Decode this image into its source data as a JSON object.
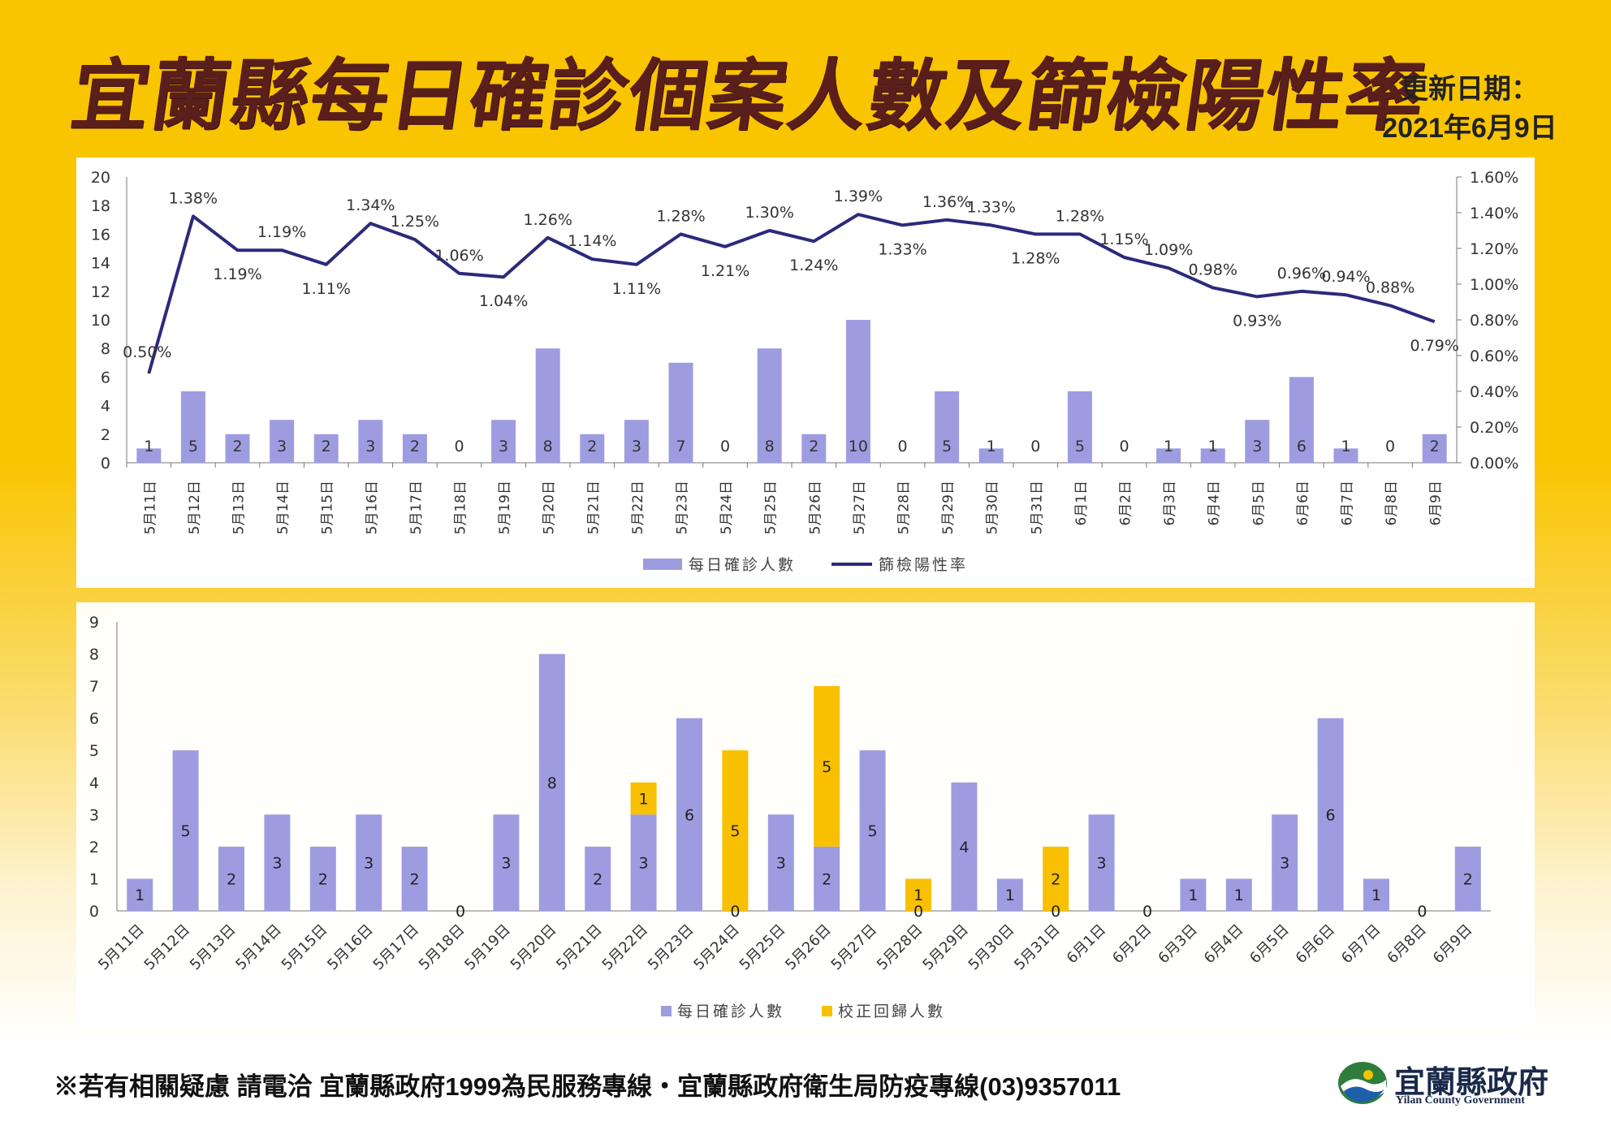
{
  "header": {
    "title": "宜蘭縣每日確診個案人數及篩檢陽性率",
    "update_label": "更新日期：",
    "update_date": "2021年6月9日"
  },
  "footer": {
    "text": "※若有相關疑慮 請電洽  宜蘭縣政府1999為民服務專線・宜蘭縣政府衛生局防疫專線(03)9357011",
    "logo_zh": "宜蘭縣政府",
    "logo_en": "Yilan County Government"
  },
  "colors": {
    "bar": "#9e9ce0",
    "line": "#2b2a7c",
    "correction": "#f8c000",
    "title": "#5a1f1b"
  },
  "chart_data": [
    {
      "type": "bar+line",
      "categories": [
        "5月11日",
        "5月12日",
        "5月13日",
        "5月14日",
        "5月15日",
        "5月16日",
        "5月17日",
        "5月18日",
        "5月19日",
        "5月20日",
        "5月21日",
        "5月22日",
        "5月23日",
        "5月24日",
        "5月25日",
        "5月26日",
        "5月27日",
        "5月28日",
        "5月29日",
        "5月30日",
        "5月31日",
        "6月1日",
        "6月2日",
        "6月3日",
        "6月4日",
        "6月5日",
        "6月6日",
        "6月7日",
        "6月8日",
        "6月9日"
      ],
      "series": [
        {
          "name": "每日確診人數",
          "type": "bar",
          "axis": "left",
          "values": [
            1,
            5,
            2,
            3,
            2,
            3,
            2,
            0,
            3,
            8,
            2,
            3,
            7,
            0,
            8,
            2,
            10,
            0,
            5,
            1,
            0,
            5,
            0,
            1,
            1,
            3,
            6,
            1,
            0,
            2
          ]
        },
        {
          "name": "篩檢陽性率",
          "type": "line",
          "axis": "right",
          "values": [
            0.5,
            1.38,
            1.19,
            1.19,
            1.11,
            1.34,
            1.25,
            1.06,
            1.04,
            1.26,
            1.14,
            1.11,
            1.28,
            1.21,
            1.3,
            1.24,
            1.39,
            1.33,
            1.36,
            1.33,
            1.28,
            1.28,
            1.15,
            1.09,
            0.98,
            0.93,
            0.96,
            0.94,
            0.88,
            0.79
          ],
          "labels": [
            "0.50%",
            "1.38%",
            "1.19%",
            "1.19%",
            "1.11%",
            "1.34%",
            "1.25%",
            "1.06%",
            "1.04%",
            "1.26%",
            "1.14%",
            "1.11%",
            "1.28%",
            "1.21%",
            "1.30%",
            "1.24%",
            "1.39%",
            "1.33%",
            "1.36%",
            "1.33%",
            "1.28%",
            "1.28%",
            "1.15%",
            "1.09%",
            "0.98%",
            "0.93%",
            "0.96%",
            "0.94%",
            "0.88%",
            "0.79%"
          ]
        }
      ],
      "left_axis": {
        "ylim": [
          0,
          20
        ],
        "ticks": [
          "0",
          "2",
          "4",
          "6",
          "8",
          "10",
          "12",
          "14",
          "16",
          "18",
          "20"
        ]
      },
      "right_axis": {
        "ylim": [
          0,
          1.6
        ],
        "ticks": [
          "0.00%",
          "0.20%",
          "0.40%",
          "0.60%",
          "0.80%",
          "1.00%",
          "1.20%",
          "1.40%",
          "1.60%"
        ]
      },
      "grid": false,
      "legend": "bottom"
    },
    {
      "type": "stacked-bar",
      "categories": [
        "5月11日",
        "5月12日",
        "5月13日",
        "5月14日",
        "5月15日",
        "5月16日",
        "5月17日",
        "5月18日",
        "5月19日",
        "5月20日",
        "5月21日",
        "5月22日",
        "5月23日",
        "5月24日",
        "5月25日",
        "5月26日",
        "5月27日",
        "5月28日",
        "5月29日",
        "5月30日",
        "5月31日",
        "6月1日",
        "6月2日",
        "6月3日",
        "6月4日",
        "6月5日",
        "6月6日",
        "6月7日",
        "6月8日",
        "6月9日"
      ],
      "series": [
        {
          "name": "每日確診人數",
          "values": [
            1,
            5,
            2,
            3,
            2,
            3,
            2,
            0,
            3,
            8,
            2,
            3,
            6,
            0,
            3,
            2,
            5,
            0,
            4,
            1,
            0,
            3,
            0,
            1,
            1,
            3,
            6,
            1,
            0,
            2
          ]
        },
        {
          "name": "校正回歸人數",
          "values": [
            0,
            0,
            0,
            0,
            0,
            0,
            0,
            0,
            0,
            0,
            0,
            1,
            0,
            5,
            0,
            5,
            0,
            1,
            0,
            0,
            2,
            0,
            0,
            0,
            0,
            0,
            0,
            0,
            0,
            0
          ]
        }
      ],
      "ylim": [
        0,
        9
      ],
      "ticks": [
        "0",
        "1",
        "2",
        "3",
        "4",
        "5",
        "6",
        "7",
        "8",
        "9"
      ],
      "grid": false,
      "legend": "bottom"
    }
  ]
}
